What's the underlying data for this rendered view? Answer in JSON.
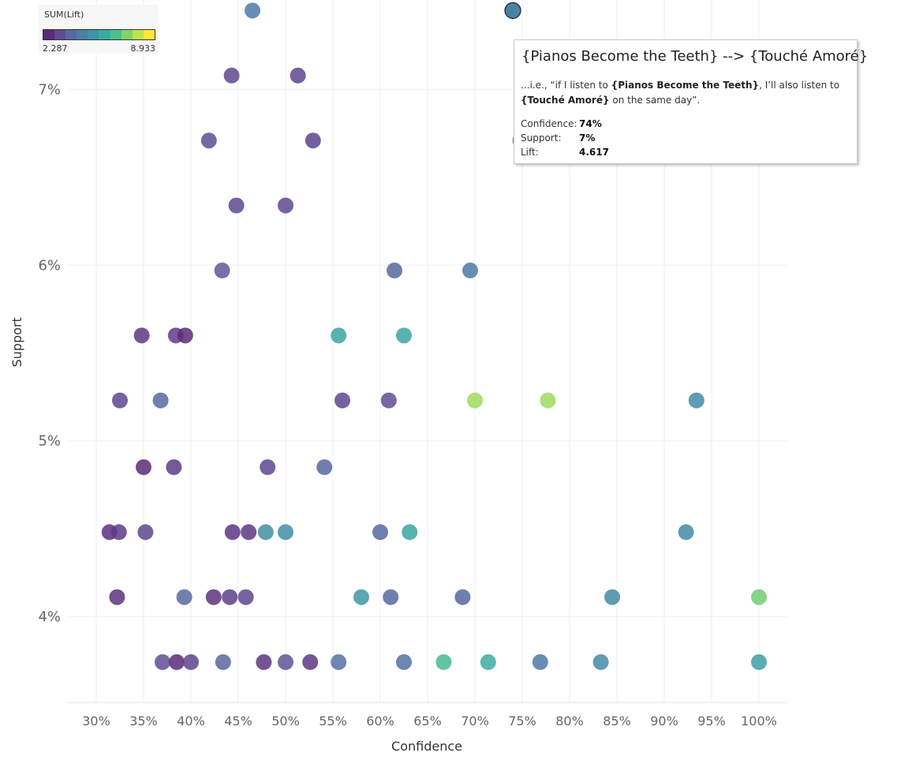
{
  "chart_data": {
    "type": "scatter",
    "title": "",
    "xlabel": "Confidence",
    "ylabel": "Support",
    "xlim": [
      0.27,
      1.03
    ],
    "ylim": [
      0.0351,
      0.0751
    ],
    "x_ticks": [
      0.3,
      0.35,
      0.4,
      0.45,
      0.5,
      0.55,
      0.6,
      0.65,
      0.7,
      0.75,
      0.8,
      0.85,
      0.9,
      0.95,
      1.0
    ],
    "x_tick_labels": [
      "30%",
      "35%",
      "40%",
      "45%",
      "50%",
      "55%",
      "60%",
      "65%",
      "70%",
      "75%",
      "80%",
      "85%",
      "90%",
      "95%",
      "100%"
    ],
    "y_ticks": [
      0.04,
      0.05,
      0.06,
      0.07
    ],
    "y_tick_labels": [
      "4%",
      "5%",
      "6%",
      "7%"
    ],
    "grid": true,
    "color_legend": {
      "title": "SUM(Lift)",
      "min_label": "2.287",
      "max_label": "8.933",
      "min": 2.287,
      "max": 8.933,
      "ramp": [
        "#5b2a78",
        "#5e4c93",
        "#566aa0",
        "#4c7fa5",
        "#3d95a5",
        "#38aca2",
        "#4dbf8a",
        "#82d36b",
        "#c0e24d",
        "#fde73a"
      ]
    },
    "points": [
      {
        "x": 0.465,
        "y": 0.0745,
        "lift": 4.3
      },
      {
        "x": 0.74,
        "y": 0.0745,
        "lift": 4.617
      },
      {
        "x": 0.443,
        "y": 0.0708,
        "lift": 2.9
      },
      {
        "x": 0.513,
        "y": 0.0708,
        "lift": 2.9
      },
      {
        "x": 0.419,
        "y": 0.0671,
        "lift": 3.05
      },
      {
        "x": 0.529,
        "y": 0.0671,
        "lift": 2.85
      },
      {
        "x": 0.748,
        "y": 0.0671,
        "lift": 4.55
      },
      {
        "x": 0.448,
        "y": 0.0634,
        "lift": 2.9
      },
      {
        "x": 0.5,
        "y": 0.0634,
        "lift": 2.9
      },
      {
        "x": 0.433,
        "y": 0.0597,
        "lift": 3.4
      },
      {
        "x": 0.615,
        "y": 0.0597,
        "lift": 3.7
      },
      {
        "x": 0.695,
        "y": 0.0597,
        "lift": 4.3
      },
      {
        "x": 0.348,
        "y": 0.056,
        "lift": 2.6
      },
      {
        "x": 0.384,
        "y": 0.056,
        "lift": 2.7
      },
      {
        "x": 0.394,
        "y": 0.056,
        "lift": 2.3
      },
      {
        "x": 0.556,
        "y": 0.056,
        "lift": 5.8
      },
      {
        "x": 0.625,
        "y": 0.056,
        "lift": 5.8
      },
      {
        "x": 0.325,
        "y": 0.0523,
        "lift": 2.9
      },
      {
        "x": 0.368,
        "y": 0.0523,
        "lift": 3.75
      },
      {
        "x": 0.56,
        "y": 0.0523,
        "lift": 2.9
      },
      {
        "x": 0.609,
        "y": 0.0523,
        "lift": 3.05
      },
      {
        "x": 0.7,
        "y": 0.0523,
        "lift": 7.8
      },
      {
        "x": 0.777,
        "y": 0.0523,
        "lift": 7.8
      },
      {
        "x": 0.934,
        "y": 0.0523,
        "lift": 4.9
      },
      {
        "x": 0.35,
        "y": 0.0485,
        "lift": 2.3
      },
      {
        "x": 0.382,
        "y": 0.0485,
        "lift": 2.65
      },
      {
        "x": 0.481,
        "y": 0.0485,
        "lift": 2.9
      },
      {
        "x": 0.541,
        "y": 0.0485,
        "lift": 3.7
      },
      {
        "x": 0.314,
        "y": 0.0448,
        "lift": 2.4
      },
      {
        "x": 0.324,
        "y": 0.0448,
        "lift": 2.7
      },
      {
        "x": 0.352,
        "y": 0.0448,
        "lift": 2.9
      },
      {
        "x": 0.444,
        "y": 0.0448,
        "lift": 2.55
      },
      {
        "x": 0.461,
        "y": 0.0448,
        "lift": 2.6
      },
      {
        "x": 0.479,
        "y": 0.0448,
        "lift": 5.0
      },
      {
        "x": 0.5,
        "y": 0.0448,
        "lift": 5.0
      },
      {
        "x": 0.6,
        "y": 0.0448,
        "lift": 3.75
      },
      {
        "x": 0.631,
        "y": 0.0448,
        "lift": 5.8
      },
      {
        "x": 0.923,
        "y": 0.0448,
        "lift": 4.9
      },
      {
        "x": 0.322,
        "y": 0.0411,
        "lift": 2.45
      },
      {
        "x": 0.393,
        "y": 0.0411,
        "lift": 3.75
      },
      {
        "x": 0.424,
        "y": 0.0411,
        "lift": 2.45
      },
      {
        "x": 0.441,
        "y": 0.0411,
        "lift": 2.75
      },
      {
        "x": 0.458,
        "y": 0.0411,
        "lift": 2.9
      },
      {
        "x": 0.58,
        "y": 0.0411,
        "lift": 5.3
      },
      {
        "x": 0.611,
        "y": 0.0411,
        "lift": 3.7
      },
      {
        "x": 0.687,
        "y": 0.0411,
        "lift": 3.7
      },
      {
        "x": 0.845,
        "y": 0.0411,
        "lift": 4.9
      },
      {
        "x": 1.0,
        "y": 0.0411,
        "lift": 7.2
      },
      {
        "x": 0.37,
        "y": 0.0374,
        "lift": 3.05
      },
      {
        "x": 0.385,
        "y": 0.0374,
        "lift": 2.3
      },
      {
        "x": 0.4,
        "y": 0.0374,
        "lift": 2.85
      },
      {
        "x": 0.434,
        "y": 0.0374,
        "lift": 3.7
      },
      {
        "x": 0.477,
        "y": 0.0374,
        "lift": 2.55
      },
      {
        "x": 0.5,
        "y": 0.0374,
        "lift": 3.2
      },
      {
        "x": 0.526,
        "y": 0.0374,
        "lift": 2.6
      },
      {
        "x": 0.556,
        "y": 0.0374,
        "lift": 4.05
      },
      {
        "x": 0.625,
        "y": 0.0374,
        "lift": 4.05
      },
      {
        "x": 0.667,
        "y": 0.0374,
        "lift": 6.5
      },
      {
        "x": 0.714,
        "y": 0.0374,
        "lift": 6.0
      },
      {
        "x": 0.769,
        "y": 0.0374,
        "lift": 4.3
      },
      {
        "x": 0.833,
        "y": 0.0374,
        "lift": 4.9
      },
      {
        "x": 1.0,
        "y": 0.0374,
        "lift": 5.6
      }
    ]
  },
  "tooltip": {
    "rule_title": "{Pianos Become the Teeth} --> {Touché Amoré}",
    "desc_prefix": "...i.e., “if I listen to ",
    "antecedent": "{Pianos Become the Teeth}",
    "desc_middle": ", I’ll also listen to",
    "consequent": "{Touché Amoré}",
    "desc_suffix": " on the same day”.",
    "confidence_label": "Confidence:",
    "confidence_value": "74%",
    "support_label": "Support:",
    "support_value": "7%",
    "lift_label": "Lift:",
    "lift_value": "4.617"
  }
}
